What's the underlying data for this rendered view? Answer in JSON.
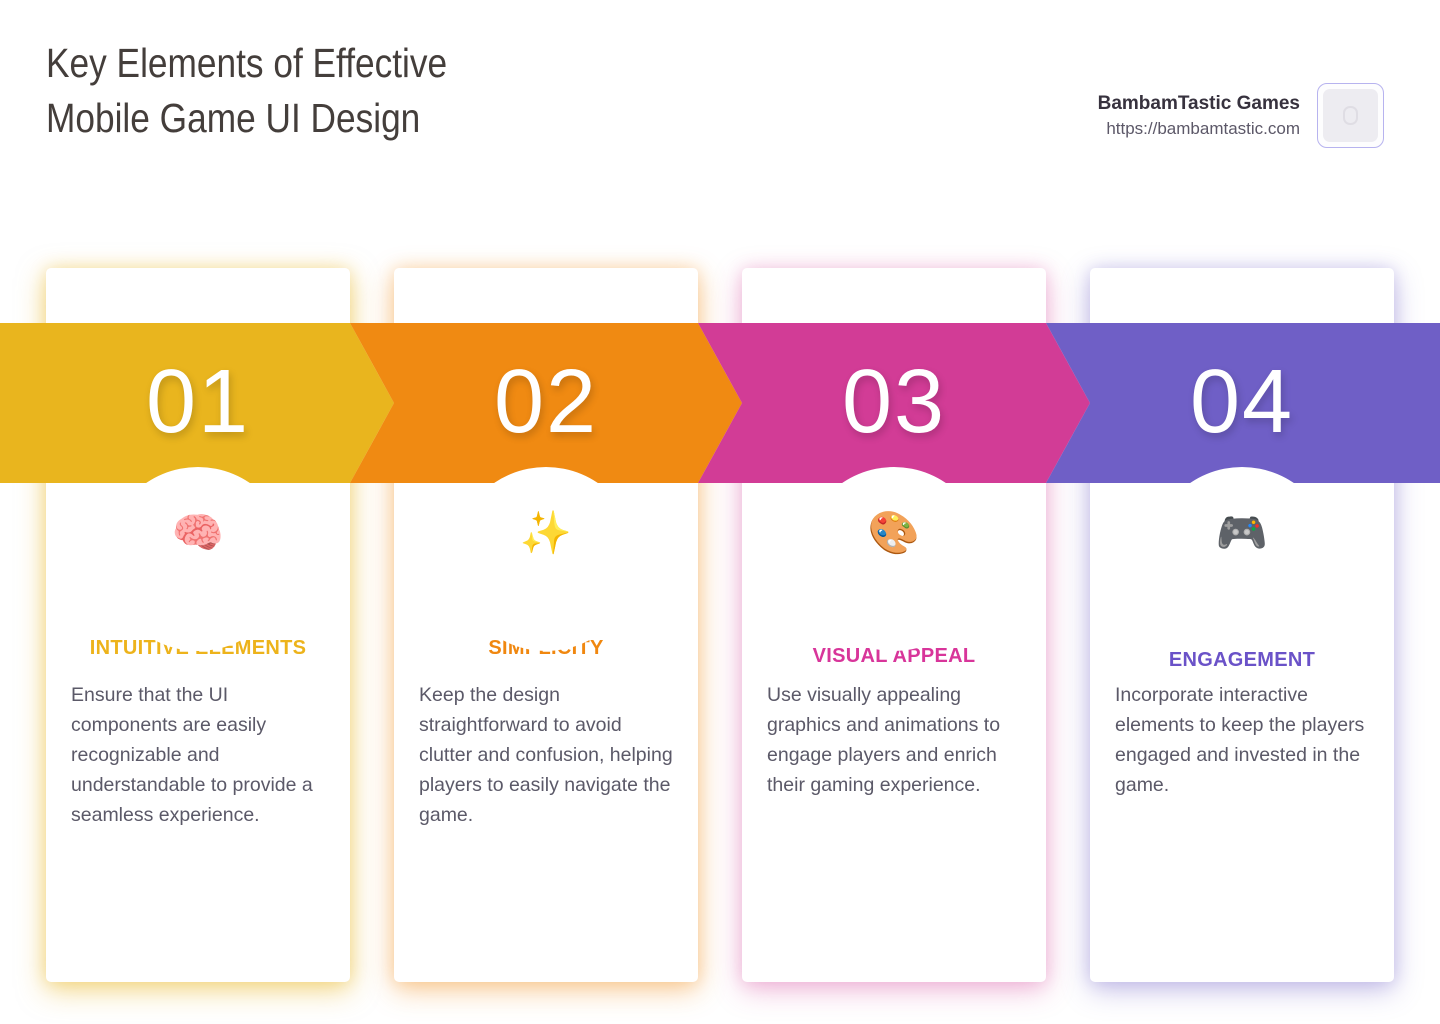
{
  "header": {
    "title_line1": "Key Elements of Effective",
    "title_line2": "Mobile Game UI Design",
    "brand": {
      "name": "BambamTastic Games",
      "url": "https://bambamtastic.com"
    }
  },
  "steps": [
    {
      "number": "01",
      "icon": "brain-icon",
      "glyph": "🧠",
      "title": "INTUITIVE ELEMENTS",
      "description": "Ensure that the UI components are easily recognizable and understandable to provide a seamless experience.",
      "accent_color": "#E9B51E"
    },
    {
      "number": "02",
      "icon": "sparkles-icon",
      "glyph": "✨",
      "title": "SIMPLICITY",
      "description": "Keep the design straightforward to avoid clutter and confusion, helping players to easily navigate the game.",
      "accent_color": "#F08A12"
    },
    {
      "number": "03",
      "icon": "palette-icon",
      "glyph": "🎨",
      "title": "VISUAL APPEAL",
      "description": "Use visually appealing graphics and animations to engage players and enrich their gaming experience.",
      "accent_color": "#D23C96"
    },
    {
      "number": "04",
      "icon": "game-controller-icon",
      "glyph": "🎮",
      "title": "ENGAGEMENT",
      "description": "Incorporate interactive elements to keep the players engaged and invested in the game.",
      "accent_color": "#6F5FC6"
    }
  ]
}
